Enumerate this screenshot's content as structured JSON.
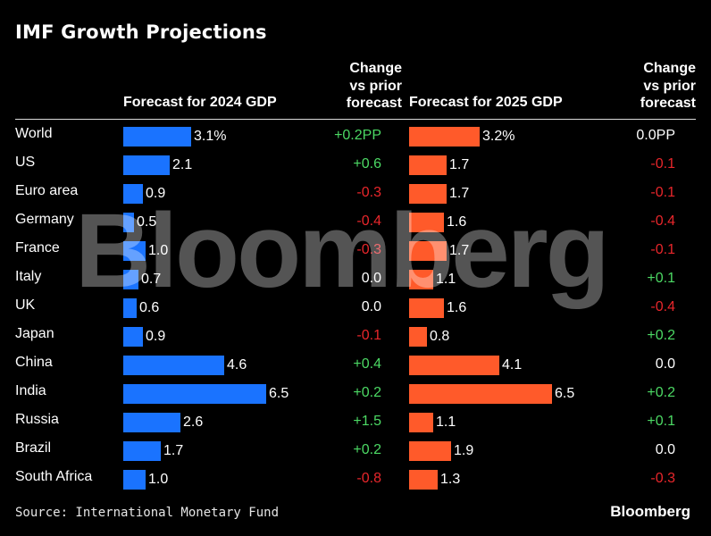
{
  "title": "IMF Growth Projections",
  "headers": {
    "forecast_2024": "Forecast for 2024 GDP",
    "change_2024": [
      "Change",
      "vs prior",
      "forecast"
    ],
    "forecast_2025": "Forecast for 2025 GDP",
    "change_2025": [
      "Change",
      "vs prior",
      "forecast"
    ]
  },
  "colors": {
    "bar_2024": "#1a73ff",
    "bar_2025": "#ff5a2a",
    "positive": "#4cd964",
    "negative": "#e8262b",
    "neutral": "#ffffff"
  },
  "chart_data": {
    "type": "bar",
    "title": "IMF Growth Projections",
    "categories": [
      "World",
      "US",
      "Euro area",
      "Germany",
      "France",
      "Italy",
      "UK",
      "Japan",
      "China",
      "India",
      "Russia",
      "Brazil",
      "South Africa"
    ],
    "series": [
      {
        "name": "Forecast for 2024 GDP",
        "values": [
          3.1,
          2.1,
          0.9,
          0.5,
          1.0,
          0.7,
          0.6,
          0.9,
          4.6,
          6.5,
          2.6,
          1.7,
          1.0
        ],
        "labels": [
          "3.1%",
          "2.1",
          "0.9",
          "0.5",
          "1.0",
          "0.7",
          "0.6",
          "0.9",
          "4.6",
          "6.5",
          "2.6",
          "1.7",
          "1.0"
        ]
      },
      {
        "name": "Forecast for 2025 GDP",
        "values": [
          3.2,
          1.7,
          1.7,
          1.6,
          1.7,
          1.1,
          1.6,
          0.8,
          4.1,
          6.5,
          1.1,
          1.9,
          1.3
        ],
        "labels": [
          "3.2%",
          "1.7",
          "1.7",
          "1.6",
          "1.7",
          "1.1",
          "1.6",
          "0.8",
          "4.1",
          "6.5",
          "1.1",
          "1.9",
          "1.3"
        ]
      }
    ],
    "change_2024": [
      "+0.2PP",
      "+0.6",
      "-0.3",
      "-0.4",
      "-0.3",
      "0.0",
      "0.0",
      "-0.1",
      "+0.4",
      "+0.2",
      "+1.5",
      "+0.2",
      "-0.8"
    ],
    "change_2025": [
      "0.0PP",
      "-0.1",
      "-0.1",
      "-0.4",
      "-0.1",
      "+0.1",
      "-0.4",
      "+0.2",
      "0.0",
      "+0.2",
      "+0.1",
      "0.0",
      "-0.3"
    ],
    "grid": false,
    "legend": "none"
  },
  "source": "Source: International Monetary Fund",
  "brand": "Bloomberg",
  "watermark": "Bloomberg"
}
